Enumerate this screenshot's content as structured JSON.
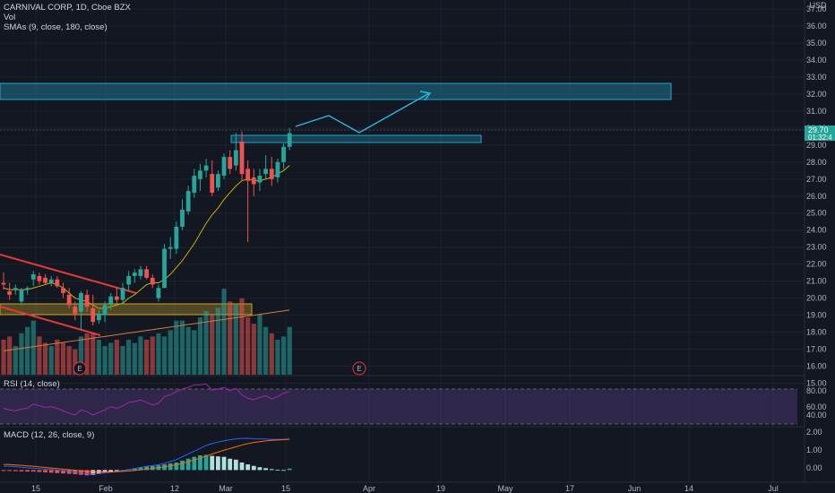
{
  "header": {
    "symbol_line": "CARNIVAL CORP, 1D, Cboe BZX",
    "vol_label": "Vol",
    "sma_label": "SMAs (9, close, 180, close)",
    "currency": "USD"
  },
  "rsi_panel": {
    "title": "RSI (14, close)",
    "ticks": [
      "80.00",
      "60.00",
      "40.00"
    ]
  },
  "macd_panel": {
    "title": "MACD (12, 26, close, 9)",
    "ticks": [
      "2.00",
      "1.00",
      "0.00"
    ]
  },
  "price_badge": {
    "price": "29.70",
    "countdown": "01:32:4",
    "color": "#26a69a"
  },
  "earnings_markers": [
    "E",
    "E"
  ],
  "x_axis_labels": [
    "15",
    "Feb",
    "12",
    "Mar",
    "15",
    "Apr",
    "19",
    "May",
    "17",
    "Jun",
    "14",
    "Jul"
  ],
  "colors": {
    "up": "#26a69a",
    "down": "#ef5350",
    "zone_blue": "#22a6c8",
    "zone_yellow": "#c9a227",
    "trendline": "#e53935",
    "sma_fast": "#c9b100",
    "sma_slow": "#d27d3f",
    "rsi": "#9c27b0",
    "macd": "#2962ff",
    "signal": "#ff6d00"
  },
  "chart_data": [
    {
      "type": "candlestick",
      "title": "CARNIVAL CORP, 1D, Cboe BZX",
      "ylabel": "USD",
      "ylim": [
        14.5,
        37.0
      ],
      "y_ticks": [
        "37.00",
        "36.00",
        "35.00",
        "34.00",
        "33.00",
        "32.00",
        "31.00",
        "30.00",
        "29.00",
        "28.00",
        "27.00",
        "26.00",
        "25.00",
        "24.00",
        "23.00",
        "22.00",
        "21.00",
        "20.00",
        "19.00",
        "18.00",
        "17.00",
        "16.00",
        "15.00"
      ],
      "candles": [
        {
          "o": 20.9,
          "h": 21.5,
          "l": 20.5,
          "c": 20.8
        },
        {
          "o": 20.4,
          "h": 20.9,
          "l": 19.9,
          "c": 20.2
        },
        {
          "o": 20.5,
          "h": 20.8,
          "l": 20.2,
          "c": 20.6
        },
        {
          "o": 19.8,
          "h": 20.6,
          "l": 19.6,
          "c": 20.5
        },
        {
          "o": 20.5,
          "h": 20.7,
          "l": 20.2,
          "c": 20.6
        },
        {
          "o": 21.1,
          "h": 21.6,
          "l": 20.7,
          "c": 21.4
        },
        {
          "o": 21.3,
          "h": 21.5,
          "l": 20.8,
          "c": 21.0
        },
        {
          "o": 21.2,
          "h": 21.4,
          "l": 20.8,
          "c": 20.9
        },
        {
          "o": 20.9,
          "h": 21.3,
          "l": 20.7,
          "c": 21.1
        },
        {
          "o": 21.1,
          "h": 21.3,
          "l": 20.6,
          "c": 20.7
        },
        {
          "o": 20.6,
          "h": 20.9,
          "l": 20.0,
          "c": 20.3
        },
        {
          "o": 20.2,
          "h": 20.6,
          "l": 19.4,
          "c": 19.6
        },
        {
          "o": 19.5,
          "h": 19.8,
          "l": 18.7,
          "c": 19.1
        },
        {
          "o": 19.2,
          "h": 20.4,
          "l": 18.1,
          "c": 20.3
        },
        {
          "o": 20.2,
          "h": 20.5,
          "l": 19.2,
          "c": 19.5
        },
        {
          "o": 19.4,
          "h": 20.2,
          "l": 18.4,
          "c": 18.6
        },
        {
          "o": 18.7,
          "h": 19.3,
          "l": 18.5,
          "c": 19.1
        },
        {
          "o": 19.0,
          "h": 19.8,
          "l": 18.6,
          "c": 19.6
        },
        {
          "o": 19.6,
          "h": 20.3,
          "l": 19.3,
          "c": 20.1
        },
        {
          "o": 20.1,
          "h": 20.6,
          "l": 19.6,
          "c": 19.9
        },
        {
          "o": 19.9,
          "h": 20.9,
          "l": 19.7,
          "c": 20.6
        },
        {
          "o": 20.8,
          "h": 21.6,
          "l": 20.4,
          "c": 21.3
        },
        {
          "o": 21.3,
          "h": 21.7,
          "l": 20.9,
          "c": 21.5
        },
        {
          "o": 21.3,
          "h": 21.9,
          "l": 21.1,
          "c": 21.7
        },
        {
          "o": 21.7,
          "h": 21.9,
          "l": 21.1,
          "c": 21.2
        },
        {
          "o": 21.2,
          "h": 21.4,
          "l": 20.6,
          "c": 20.8
        },
        {
          "o": 20.0,
          "h": 20.8,
          "l": 19.8,
          "c": 20.6
        },
        {
          "o": 20.6,
          "h": 23.2,
          "l": 20.6,
          "c": 22.9
        },
        {
          "o": 22.9,
          "h": 23.6,
          "l": 22.3,
          "c": 23.0
        },
        {
          "o": 22.9,
          "h": 24.5,
          "l": 22.6,
          "c": 24.2
        },
        {
          "o": 24.2,
          "h": 25.8,
          "l": 24.0,
          "c": 25.2
        },
        {
          "o": 25.1,
          "h": 26.6,
          "l": 24.9,
          "c": 26.3
        },
        {
          "o": 26.2,
          "h": 27.6,
          "l": 25.9,
          "c": 27.2
        },
        {
          "o": 27.0,
          "h": 27.9,
          "l": 26.3,
          "c": 27.5
        },
        {
          "o": 27.5,
          "h": 28.2,
          "l": 27.1,
          "c": 27.8
        },
        {
          "o": 27.3,
          "h": 28.1,
          "l": 26.0,
          "c": 26.2
        },
        {
          "o": 26.5,
          "h": 27.5,
          "l": 26.3,
          "c": 27.3
        },
        {
          "o": 27.2,
          "h": 28.5,
          "l": 27.0,
          "c": 28.3
        },
        {
          "o": 28.3,
          "h": 28.7,
          "l": 27.3,
          "c": 27.6
        },
        {
          "o": 27.8,
          "h": 29.7,
          "l": 27.5,
          "c": 28.7
        },
        {
          "o": 29.2,
          "h": 29.8,
          "l": 26.9,
          "c": 27.3
        },
        {
          "o": 27.6,
          "h": 28.1,
          "l": 23.3,
          "c": 26.9
        },
        {
          "o": 27.1,
          "h": 27.6,
          "l": 26.0,
          "c": 26.7
        },
        {
          "o": 26.8,
          "h": 27.6,
          "l": 26.3,
          "c": 27.2
        },
        {
          "o": 27.3,
          "h": 28.4,
          "l": 27.0,
          "c": 27.6
        },
        {
          "o": 27.6,
          "h": 28.3,
          "l": 26.6,
          "c": 27.0
        },
        {
          "o": 27.1,
          "h": 28.2,
          "l": 26.8,
          "c": 28.0
        },
        {
          "o": 28.0,
          "h": 29.1,
          "l": 27.6,
          "c": 28.9
        },
        {
          "o": 28.9,
          "h": 30.0,
          "l": 28.7,
          "c": 29.7
        }
      ],
      "volume": [
        11,
        12,
        9,
        13,
        15,
        17,
        12,
        10,
        9,
        11,
        10,
        9,
        8,
        12,
        13,
        13,
        11,
        9,
        10,
        11,
        9,
        11,
        10,
        12,
        11,
        12,
        13,
        12,
        14,
        17,
        17,
        15,
        14,
        18,
        20,
        19,
        21,
        27,
        23,
        22,
        24,
        18,
        16,
        19,
        15,
        13,
        11,
        12,
        15
      ],
      "sma_fast": [
        20.6,
        20.5,
        20.5,
        20.5,
        20.5,
        20.6,
        20.7,
        20.8,
        20.9,
        20.8,
        20.6,
        20.3,
        20.0,
        19.9,
        19.8,
        19.6,
        19.4,
        19.4,
        19.5,
        19.6,
        19.7,
        20.0,
        20.2,
        20.5,
        20.8,
        20.9,
        20.9,
        21.1,
        21.4,
        21.8,
        22.2,
        22.7,
        23.2,
        23.8,
        24.4,
        24.9,
        25.3,
        25.8,
        26.2,
        26.6,
        26.9,
        27.0,
        26.9,
        26.9,
        27.0,
        27.1,
        27.3,
        27.5,
        27.8
      ],
      "sma_slow": [
        16.9,
        16.95,
        17.0,
        17.05,
        17.1,
        17.15,
        17.2,
        17.25,
        17.3,
        17.35,
        17.4,
        17.45,
        17.5,
        17.55,
        17.6,
        17.65,
        17.7,
        17.75,
        17.8,
        17.85,
        17.9,
        17.95,
        18.0,
        18.05,
        18.1,
        18.15,
        18.2,
        18.25,
        18.3,
        18.35,
        18.4,
        18.45,
        18.5,
        18.55,
        18.6,
        18.65,
        18.7,
        18.75,
        18.8,
        18.85,
        18.9,
        18.95,
        19.0,
        19.05,
        19.1,
        19.15,
        19.2,
        19.25,
        19.3
      ]
    },
    {
      "type": "line",
      "title": "RSI (14, close)",
      "ylim": [
        28,
        88
      ],
      "bands": [
        70,
        30
      ],
      "values": [
        50,
        48,
        47,
        49,
        50,
        55,
        53,
        51,
        52,
        50,
        47,
        44,
        42,
        48,
        46,
        42,
        45,
        48,
        52,
        50,
        53,
        57,
        58,
        60,
        57,
        54,
        56,
        64,
        66,
        70,
        73,
        75,
        78,
        78,
        79,
        72,
        73,
        75,
        71,
        74,
        66,
        62,
        60,
        63,
        65,
        61,
        64,
        68,
        70
      ]
    },
    {
      "type": "bar",
      "title": "MACD (12, 26, close, 9)",
      "ylim": [
        -0.55,
        2.2
      ],
      "histogram": [
        -0.05,
        -0.05,
        -0.06,
        -0.07,
        -0.08,
        -0.08,
        -0.1,
        -0.12,
        -0.14,
        -0.16,
        -0.18,
        -0.2,
        -0.22,
        -0.25,
        -0.28,
        -0.25,
        -0.2,
        -0.15,
        -0.1,
        -0.05,
        0.0,
        0.05,
        0.1,
        0.15,
        0.2,
        0.22,
        0.25,
        0.3,
        0.35,
        0.4,
        0.5,
        0.6,
        0.7,
        0.78,
        0.8,
        0.75,
        0.72,
        0.7,
        0.6,
        0.55,
        0.4,
        0.3,
        0.22,
        0.15,
        0.1,
        0.05,
        0.02,
        0.0,
        0.08
      ],
      "macd": [
        0.2,
        0.2,
        0.18,
        0.15,
        0.12,
        0.1,
        0.08,
        0.05,
        0.03,
        0.0,
        -0.03,
        -0.08,
        -0.12,
        -0.15,
        -0.2,
        -0.2,
        -0.18,
        -0.15,
        -0.12,
        -0.08,
        -0.03,
        0.02,
        0.08,
        0.14,
        0.2,
        0.24,
        0.28,
        0.36,
        0.45,
        0.55,
        0.7,
        0.85,
        1.0,
        1.15,
        1.3,
        1.4,
        1.48,
        1.55,
        1.6,
        1.65,
        1.67,
        1.68,
        1.66,
        1.65,
        1.64,
        1.62,
        1.62,
        1.62,
        1.65
      ],
      "signal": [
        0.3,
        0.29,
        0.27,
        0.25,
        0.22,
        0.2,
        0.17,
        0.14,
        0.11,
        0.08,
        0.05,
        0.02,
        -0.01,
        -0.04,
        -0.07,
        -0.09,
        -0.1,
        -0.1,
        -0.1,
        -0.09,
        -0.07,
        -0.05,
        -0.02,
        0.01,
        0.05,
        0.09,
        0.13,
        0.17,
        0.22,
        0.28,
        0.35,
        0.44,
        0.53,
        0.63,
        0.74,
        0.85,
        0.95,
        1.05,
        1.14,
        1.23,
        1.32,
        1.4,
        1.46,
        1.5,
        1.54,
        1.57,
        1.59,
        1.61,
        1.63
      ]
    }
  ]
}
